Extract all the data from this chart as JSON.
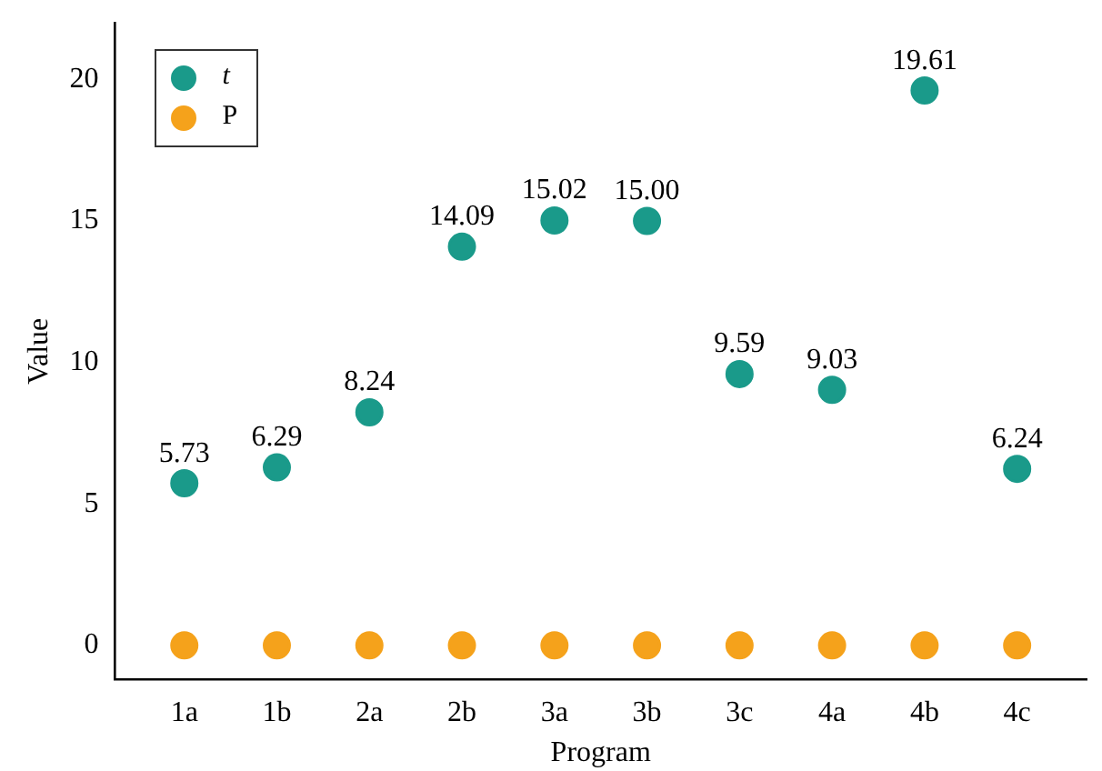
{
  "chart_data": {
    "type": "scatter",
    "xlabel": "Program",
    "ylabel": "Value",
    "categories": [
      "1a",
      "1b",
      "2a",
      "2b",
      "3a",
      "3b",
      "3c",
      "4a",
      "4b",
      "4c"
    ],
    "series": [
      {
        "name": "t",
        "color": "#1a9a8a",
        "values": [
          5.73,
          6.29,
          8.24,
          14.09,
          15.02,
          15.0,
          9.59,
          9.03,
          19.61,
          6.24
        ],
        "value_labels": [
          "5.73",
          "6.29",
          "8.24",
          "14.09",
          "15.02",
          "15.00",
          "9.59",
          "9.03",
          "19.61",
          "6.24"
        ]
      },
      {
        "name": "P",
        "color": "#f5a21b",
        "values": [
          0,
          0,
          0,
          0,
          0,
          0,
          0,
          0,
          0,
          0
        ]
      }
    ],
    "ylim": [
      -1.2,
      22
    ],
    "yticks": [
      0,
      5,
      10,
      15,
      20
    ],
    "grid": false,
    "legend": "top left",
    "marker": "circle"
  }
}
